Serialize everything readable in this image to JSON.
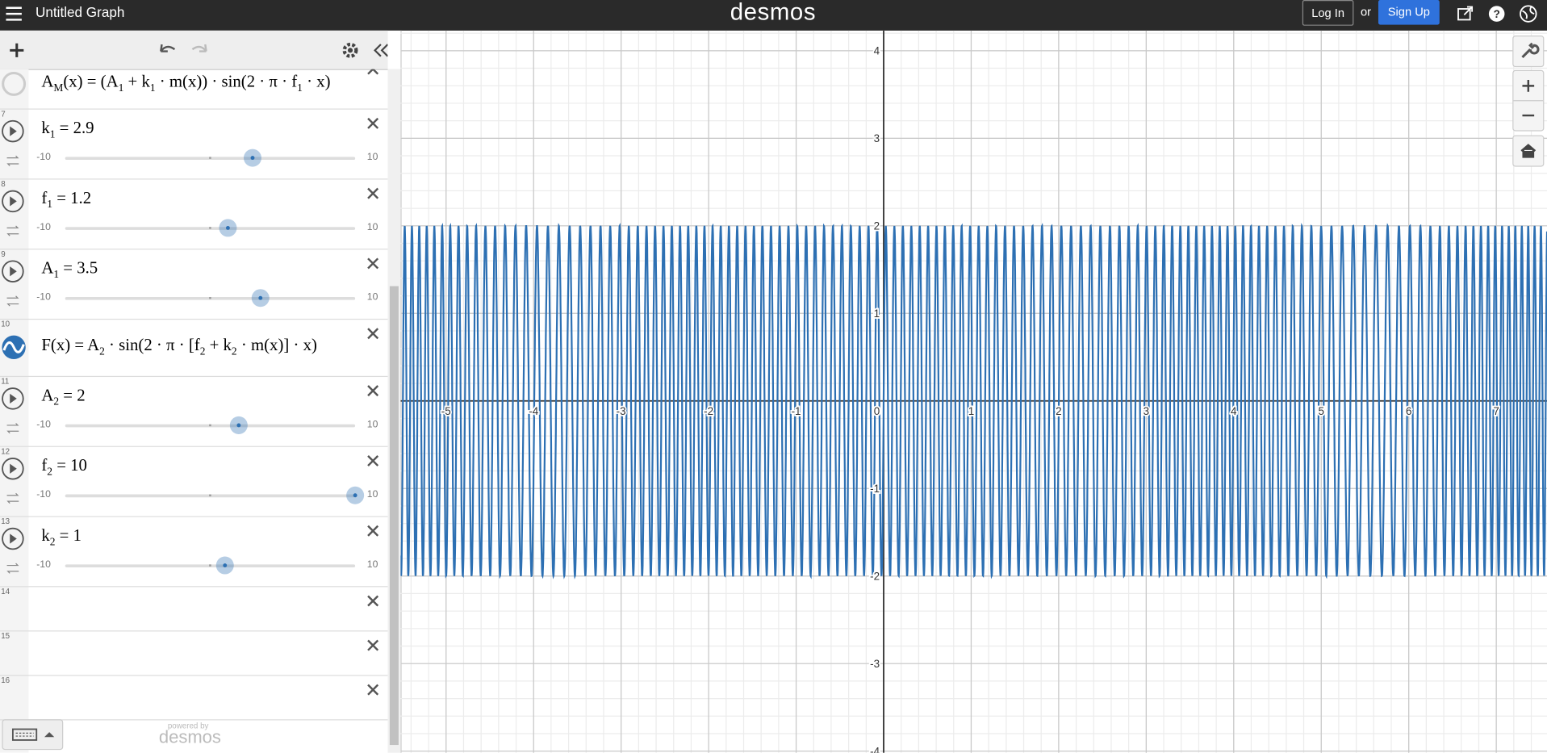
{
  "header": {
    "title": "Untitled Graph",
    "brand": "desmos",
    "login": "Log In",
    "or": "or",
    "signup": "Sign Up"
  },
  "expressions": [
    {
      "label": "A_M(x) = (A_1 + k_1 · m(x)) · sin(2 · π · f_1 · x)"
    },
    {
      "number": "7",
      "label": "k_1 = 2.9",
      "value": 2.9,
      "min": -10,
      "max": 10
    },
    {
      "number": "8",
      "label": "f_1 = 1.2",
      "value": 1.2,
      "min": -10,
      "max": 10
    },
    {
      "number": "9",
      "label": "A_1 = 3.5",
      "value": 3.5,
      "min": -10,
      "max": 10
    },
    {
      "number": "10",
      "label": "F(x) = A_2 · sin(2 · π · [f_2 + k_2 · m(x)] · x)",
      "color": "#2d70b3"
    },
    {
      "number": "11",
      "label": "A_2 = 2",
      "value": 2,
      "min": -10,
      "max": 10
    },
    {
      "number": "12",
      "label": "f_2 = 10",
      "value": 10,
      "min": -10,
      "max": 10
    },
    {
      "number": "13",
      "label": "k_2 = 1",
      "value": 1,
      "min": -10,
      "max": 10
    },
    {
      "number": "14"
    },
    {
      "number": "15"
    },
    {
      "number": "16"
    }
  ],
  "footer": {
    "powered": "powered by",
    "brand": "desmos"
  },
  "graph": {
    "xlim": [
      -5.52,
      7.58
    ],
    "ylim": [
      -4.02,
      4.23
    ],
    "xticks": [
      -5,
      -4,
      -3,
      -2,
      -1,
      0,
      1,
      2,
      3,
      4,
      5,
      6,
      7
    ],
    "yticks": [
      -4,
      -3,
      -2,
      -1,
      1,
      2,
      3,
      4
    ],
    "grid": true,
    "color": "#2d70b3"
  }
}
